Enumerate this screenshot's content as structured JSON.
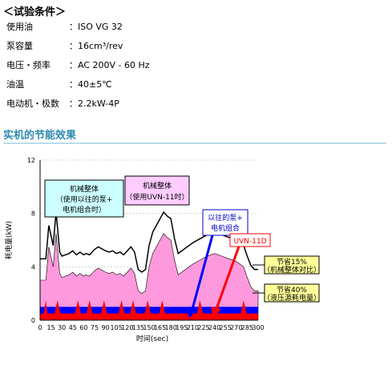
{
  "test_conditions": {
    "title": "＜试验条件＞",
    "rows": [
      {
        "label": "使用油",
        "value": "：ISO VG 32"
      },
      {
        "label": "泵容量",
        "value": "：16cm³/rev"
      },
      {
        "label": "电压・频率",
        "value": "：AC 200V - 60 Hz"
      },
      {
        "label": "油温",
        "value": "：40±5℃"
      },
      {
        "label": "电动机・极数",
        "value": "：2.2kW-4P"
      }
    ]
  },
  "section_heading": "实机的节能效果",
  "chart_data": {
    "type": "area",
    "xlabel": "时间(sec)",
    "ylabel": "耗电量(kW)",
    "xlim": [
      0,
      300
    ],
    "ylim": [
      0,
      12
    ],
    "x_ticks": [
      0,
      15,
      30,
      45,
      60,
      75,
      90,
      105,
      120,
      135,
      150,
      165,
      180,
      195,
      210,
      225,
      240,
      255,
      270,
      285,
      300
    ],
    "y_ticks": [
      0,
      4,
      8,
      12
    ],
    "colors": {
      "conventional_combo": "#ff99dd",
      "uvn11": "#ff0000",
      "uvn11_base": "#0000ff",
      "label_conventional": "#ccffff",
      "label_uvn": "#ffccff",
      "label_save": "#ffff99"
    },
    "series": [
      {
        "name": "",
        "x": [
          0,
          8,
          12,
          18,
          22,
          27,
          30,
          40,
          45,
          50,
          55,
          60,
          63,
          68,
          75,
          80,
          90,
          95,
          100,
          105,
          110,
          115,
          120,
          125,
          130,
          135,
          140,
          145,
          150,
          155,
          160,
          165,
          170,
          175,
          180,
          185,
          190,
          195,
          200,
          210,
          220,
          230,
          240,
          250,
          260,
          270,
          280,
          285,
          290,
          295,
          300
        ],
        "y": [
          3.0,
          3.0,
          5.5,
          4.0,
          6.5,
          3.5,
          3.2,
          3.4,
          3.6,
          3.3,
          3.5,
          3.3,
          3.4,
          3.3,
          3.7,
          3.9,
          3.6,
          3.5,
          3.6,
          3.4,
          3.5,
          3.3,
          3.6,
          3.9,
          3.5,
          2.2,
          2.0,
          2.2,
          4.0,
          5.0,
          5.5,
          6.0,
          6.5,
          6.2,
          6.0,
          4.5,
          3.4,
          3.6,
          3.8,
          4.2,
          4.5,
          4.8,
          5.0,
          4.8,
          4.6,
          4.4,
          4.0,
          3.2,
          2.5,
          2.2,
          2.2
        ]
      },
      {
        "name": "",
        "x": [
          0,
          5,
          8,
          10,
          15,
          20,
          24,
          28,
          32,
          36,
          40,
          44,
          48,
          52,
          56,
          60,
          64,
          68,
          72,
          76,
          80,
          84,
          88,
          92,
          96,
          100,
          104,
          108,
          112,
          116,
          120,
          124,
          128,
          132,
          136,
          140,
          144,
          148,
          152,
          156,
          160,
          164,
          168,
          172,
          176,
          180,
          184,
          188,
          192,
          196,
          200,
          204,
          208,
          212,
          216,
          220,
          224,
          228,
          232,
          236,
          240,
          244,
          248,
          252,
          256,
          260,
          264,
          268,
          272,
          276,
          280,
          284,
          288,
          292,
          296,
          300
        ],
        "y": [
          0.5,
          0.5,
          1.5,
          0.5,
          0.5,
          0.5,
          1.5,
          0.5,
          0.5,
          0.5,
          0.5,
          0.5,
          0.5,
          1.5,
          0.5,
          0.5,
          0.5,
          1.5,
          0.5,
          0.5,
          0.5,
          0.5,
          1.5,
          0.5,
          0.5,
          0.5,
          0.5,
          0.5,
          1.5,
          0.5,
          0.5,
          0.5,
          1.5,
          0.5,
          0.5,
          0.5,
          0.5,
          1.5,
          0.5,
          0.5,
          0.5,
          0.5,
          1.5,
          0.5,
          0.5,
          0.5,
          0.5,
          0.5,
          0.5,
          0.5,
          0.5,
          0.5,
          0.5,
          0.5,
          0.5,
          1.5,
          0.5,
          0.5,
          0.5,
          0.5,
          0.5,
          0.5,
          0.5,
          0.5,
          0.5,
          0.5,
          0.5,
          0.5,
          0.5,
          0.5,
          1.5,
          0.5,
          0.5,
          0.5,
          0.5,
          0.5
        ]
      }
    ],
    "annotations": [
      {
        "lines": [
          "机械整体",
          "（使用以往的泵+",
          "电机组合时）"
        ],
        "style": "conventional"
      },
      {
        "lines": [
          "机械整体",
          "（使用UVN-11时）"
        ],
        "style": "uvn"
      },
      {
        "lines": [
          "以往的泵+",
          "电机组合"
        ],
        "style": "conventional_combo"
      },
      {
        "lines": [
          "UVN-11D"
        ],
        "style": "uvn11d"
      },
      {
        "lines": [
          "节省15%",
          "（机械整体对比）"
        ],
        "style": "save"
      },
      {
        "lines": [
          "节省40%",
          "（液压源耗电量）"
        ],
        "style": "save"
      }
    ]
  }
}
